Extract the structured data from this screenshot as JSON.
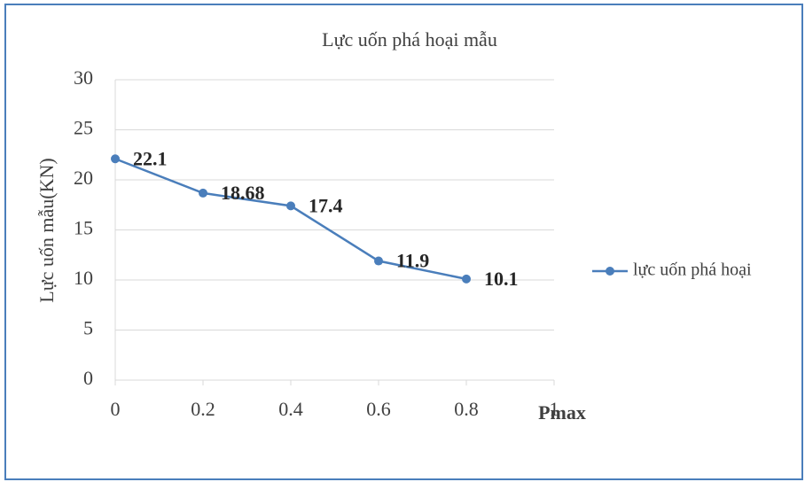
{
  "chart_data": {
    "type": "line",
    "title": "Lực uốn phá hoại mẫu",
    "x_label": "Pmax",
    "y_label": "Lực uốn mẫu(KN)",
    "x": [
      0,
      0.2,
      0.4,
      0.6,
      0.8
    ],
    "series": [
      {
        "name": "lực uốn phá hoại",
        "color": "#4a7ebb",
        "values": [
          22.1,
          18.68,
          17.4,
          11.9,
          10.1
        ]
      }
    ],
    "xlim": [
      0,
      1
    ],
    "xticks": [
      0,
      0.2,
      0.4,
      0.6,
      0.8,
      1
    ],
    "ylim": [
      0,
      30
    ],
    "yticks": [
      0,
      5,
      10,
      15,
      20,
      25,
      30
    ],
    "grid": true,
    "legend": "right",
    "data_labels": true
  }
}
